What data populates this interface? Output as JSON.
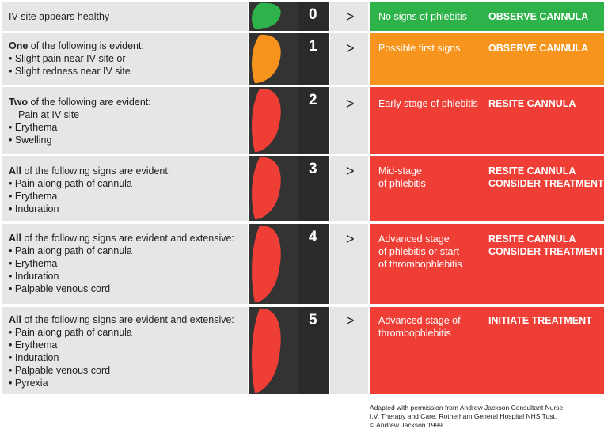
{
  "colors": {
    "green": "#2db34a",
    "orange": "#f7941d",
    "red": "#ef3e36",
    "dark": "#333333",
    "grey": "#e6e6e6"
  },
  "rows": [
    {
      "score": "0",
      "intro": {
        "bold": "",
        "rest": "IV site appears healthy"
      },
      "items": [],
      "stage": "No signs of phlebitis",
      "action": "OBSERVE CANNULA",
      "level": "green"
    },
    {
      "score": "1",
      "intro": {
        "bold": "One",
        "rest": " of the following is evident:"
      },
      "items": [
        "• Slight pain near IV site or",
        "• Slight redness near IV site"
      ],
      "stage": "Possible first signs",
      "action": "OBSERVE CANNULA",
      "level": "orange"
    },
    {
      "score": "2",
      "intro": {
        "bold": "Two",
        "rest": " of the following are evident:"
      },
      "items": [
        "Pain at IV site",
        "• Erythema",
        "• Swelling"
      ],
      "stage": "Early stage of phlebitis",
      "action": "RESITE CANNULA",
      "level": "red"
    },
    {
      "score": "3",
      "intro": {
        "bold": "All",
        "rest": " of the following signs are evident:"
      },
      "items": [
        "• Pain along path of cannula",
        "• Erythema",
        "• Induration"
      ],
      "stage": "Mid-stage\nof phlebitis",
      "action": "RESITE CANNULA\nCONSIDER TREATMENT",
      "level": "red"
    },
    {
      "score": "4",
      "intro": {
        "bold": "All",
        "rest": " of the following signs are evident and extensive:"
      },
      "items": [
        "• Pain along path of cannula",
        "• Erythema",
        "• Induration",
        "• Palpable venous cord"
      ],
      "stage": "Advanced stage\nof phlebitis or start\nof thrombophlebitis",
      "action": "RESITE CANNULA\nCONSIDER TREATMENT",
      "level": "red"
    },
    {
      "score": "5",
      "intro": {
        "bold": "All",
        "rest": " of the following signs are evident and extensive:"
      },
      "items": [
        "• Pain along path of cannula",
        "• Erythema",
        "• Induration",
        "• Palpable venous cord",
        "• Pyrexia"
      ],
      "stage": "Advanced stage of\nthrombophlebitis",
      "action": "INITIATE TREATMENT",
      "level": "red"
    }
  ],
  "arrow": ">",
  "footnote": [
    "Adapted with permission from Andrew Jackson Consultant Nurse,",
    "I.V. Therapy and Care, Rotherham General Hospital NHS Tust,",
    "© Andrew Jackson 1999."
  ]
}
